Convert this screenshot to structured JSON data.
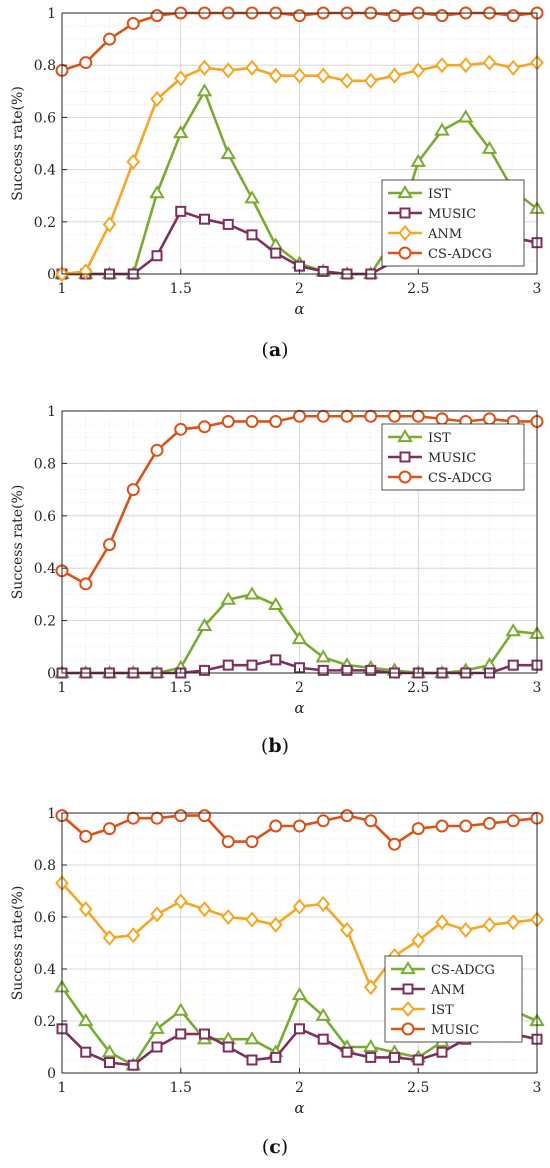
{
  "chart_data": [
    {
      "type": "line",
      "panel_label": "(a)",
      "ylabel": "Success rate(%)",
      "xlabel": "α",
      "xlim": [
        1,
        3
      ],
      "ylim": [
        0,
        1
      ],
      "xticks": [
        1,
        1.5,
        2,
        2.5,
        3
      ],
      "yticks": [
        0,
        0.2,
        0.4,
        0.6,
        0.8,
        1
      ],
      "grid": true,
      "legend_position": "bottom-right",
      "x": [
        1.0,
        1.1,
        1.2,
        1.3,
        1.4,
        1.5,
        1.6,
        1.7,
        1.8,
        1.9,
        2.0,
        2.1,
        2.2,
        2.3,
        2.4,
        2.5,
        2.6,
        2.7,
        2.8,
        2.9,
        3.0
      ],
      "series": [
        {
          "name": "IST",
          "marker": "triangle",
          "color": "#77ac30",
          "values": [
            0,
            0,
            0,
            0,
            0.31,
            0.54,
            0.7,
            0.46,
            0.29,
            0.11,
            0.04,
            0.01,
            0,
            0,
            0.14,
            0.43,
            0.55,
            0.6,
            0.48,
            0.32,
            0.25
          ]
        },
        {
          "name": "MUSIC",
          "marker": "square",
          "color": "#7e2f5e",
          "values": [
            0,
            0,
            0,
            0,
            0.07,
            0.24,
            0.21,
            0.19,
            0.15,
            0.08,
            0.03,
            0.01,
            0,
            0,
            0.05,
            0.14,
            0.18,
            0.2,
            0.18,
            0.14,
            0.12
          ]
        },
        {
          "name": "ANM",
          "marker": "diamond",
          "color": "#f5a623",
          "values": [
            0,
            0.01,
            0.19,
            0.43,
            0.67,
            0.75,
            0.79,
            0.78,
            0.79,
            0.76,
            0.76,
            0.76,
            0.74,
            0.74,
            0.76,
            0.78,
            0.8,
            0.8,
            0.81,
            0.79,
            0.81
          ]
        },
        {
          "name": "CS-ADCG",
          "marker": "circle",
          "color": "#d95319",
          "values": [
            0.78,
            0.81,
            0.9,
            0.96,
            0.99,
            1,
            1,
            1,
            1,
            1,
            0.99,
            1,
            1,
            1,
            0.99,
            1,
            0.99,
            1,
            1,
            0.99,
            1
          ]
        }
      ]
    },
    {
      "type": "line",
      "panel_label": "(b)",
      "ylabel": "Success rate(%)",
      "xlabel": "α",
      "xlim": [
        1,
        3
      ],
      "ylim": [
        0,
        1
      ],
      "xticks": [
        1,
        1.5,
        2,
        2.5,
        3
      ],
      "yticks": [
        0,
        0.2,
        0.4,
        0.6,
        0.8,
        1
      ],
      "grid": true,
      "legend_position": "top-right",
      "x": [
        1.0,
        1.1,
        1.2,
        1.3,
        1.4,
        1.5,
        1.6,
        1.7,
        1.8,
        1.9,
        2.0,
        2.1,
        2.2,
        2.3,
        2.4,
        2.5,
        2.6,
        2.7,
        2.8,
        2.9,
        3.0
      ],
      "series": [
        {
          "name": "IST",
          "marker": "triangle",
          "color": "#77ac30",
          "values": [
            0,
            0,
            0,
            0,
            0,
            0.02,
            0.18,
            0.28,
            0.3,
            0.26,
            0.13,
            0.06,
            0.03,
            0.02,
            0.01,
            0,
            0,
            0.01,
            0.03,
            0.16,
            0.15
          ]
        },
        {
          "name": "MUSIC",
          "marker": "square",
          "color": "#7e2f5e",
          "values": [
            0,
            0,
            0,
            0,
            0,
            0,
            0.01,
            0.03,
            0.03,
            0.05,
            0.02,
            0.01,
            0.01,
            0.01,
            0,
            0,
            0,
            0,
            0,
            0.03,
            0.03
          ]
        },
        {
          "name": "CS-ADCG",
          "marker": "circle",
          "color": "#d95319",
          "values": [
            0.39,
            0.34,
            0.49,
            0.7,
            0.85,
            0.93,
            0.94,
            0.96,
            0.96,
            0.96,
            0.98,
            0.98,
            0.98,
            0.98,
            0.98,
            0.98,
            0.97,
            0.96,
            0.97,
            0.96,
            0.96
          ]
        }
      ]
    },
    {
      "type": "line",
      "panel_label": "(c)",
      "ylabel": "Success rate(%)",
      "xlabel": "α",
      "xlim": [
        1,
        3
      ],
      "ylim": [
        0,
        1
      ],
      "xticks": [
        1,
        1.5,
        2,
        2.5,
        3
      ],
      "yticks": [
        0,
        0.2,
        0.4,
        0.6,
        0.8,
        1
      ],
      "grid": true,
      "legend_position": "bottom-right",
      "x": [
        1.0,
        1.1,
        1.2,
        1.3,
        1.4,
        1.5,
        1.6,
        1.7,
        1.8,
        1.9,
        2.0,
        2.1,
        2.2,
        2.3,
        2.4,
        2.5,
        2.6,
        2.7,
        2.8,
        2.9,
        3.0
      ],
      "series": [
        {
          "name": "CS-ADCG",
          "marker": "triangle",
          "color": "#77ac30",
          "values": [
            0.33,
            0.2,
            0.08,
            0.03,
            0.17,
            0.24,
            0.13,
            0.13,
            0.13,
            0.08,
            0.3,
            0.22,
            0.1,
            0.1,
            0.08,
            0.06,
            0.12,
            0.35,
            0.39,
            0.24,
            0.2
          ]
        },
        {
          "name": "ANM",
          "marker": "square",
          "color": "#7e2f5e",
          "values": [
            0.17,
            0.08,
            0.04,
            0.03,
            0.1,
            0.15,
            0.15,
            0.1,
            0.05,
            0.06,
            0.17,
            0.13,
            0.08,
            0.06,
            0.06,
            0.05,
            0.08,
            0.13,
            0.15,
            0.15,
            0.13
          ]
        },
        {
          "name": "IST",
          "marker": "diamond",
          "color": "#f5a623",
          "values": [
            0.73,
            0.63,
            0.52,
            0.53,
            0.61,
            0.66,
            0.63,
            0.6,
            0.59,
            0.57,
            0.64,
            0.65,
            0.55,
            0.33,
            0.45,
            0.51,
            0.58,
            0.55,
            0.57,
            0.58,
            0.59
          ]
        },
        {
          "name": "MUSIC",
          "marker": "circle",
          "color": "#d95319",
          "values": [
            0.99,
            0.91,
            0.94,
            0.98,
            0.98,
            0.99,
            0.99,
            0.89,
            0.89,
            0.95,
            0.95,
            0.97,
            0.99,
            0.97,
            0.88,
            0.94,
            0.95,
            0.95,
            0.96,
            0.97,
            0.98
          ]
        }
      ]
    }
  ]
}
